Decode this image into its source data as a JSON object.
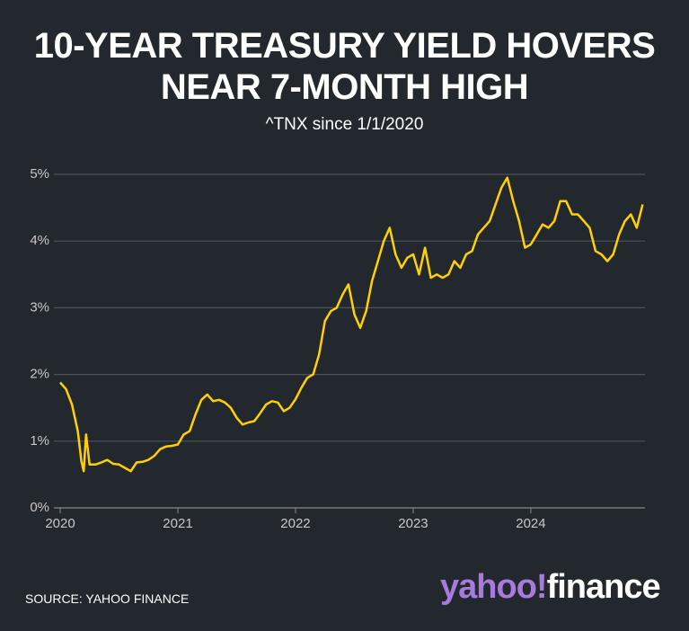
{
  "chart_data": {
    "type": "line",
    "title": "10-YEAR TREASURY YIELD HOVERS NEAR 7-MONTH HIGH",
    "subtitle": "^TNX since 1/1/2020",
    "source": "SOURCE: YAHOO FINANCE",
    "logo": {
      "brand": "yahoo!",
      "product": "finance"
    },
    "color": "#ffd100",
    "grid": true,
    "x": [
      2020.0,
      2020.05,
      2020.1,
      2020.15,
      2020.18,
      2020.2,
      2020.22,
      2020.25,
      2020.3,
      2020.35,
      2020.4,
      2020.45,
      2020.5,
      2020.55,
      2020.6,
      2020.65,
      2020.7,
      2020.75,
      2020.8,
      2020.85,
      2020.9,
      2020.95,
      2021.0,
      2021.05,
      2021.1,
      2021.15,
      2021.2,
      2021.25,
      2021.3,
      2021.35,
      2021.4,
      2021.45,
      2021.5,
      2021.55,
      2021.6,
      2021.65,
      2021.7,
      2021.75,
      2021.8,
      2021.85,
      2021.9,
      2021.95,
      2022.0,
      2022.05,
      2022.1,
      2022.15,
      2022.2,
      2022.25,
      2022.3,
      2022.35,
      2022.4,
      2022.45,
      2022.5,
      2022.55,
      2022.6,
      2022.65,
      2022.7,
      2022.75,
      2022.8,
      2022.85,
      2022.9,
      2022.95,
      2023.0,
      2023.05,
      2023.1,
      2023.15,
      2023.2,
      2023.25,
      2023.3,
      2023.35,
      2023.4,
      2023.45,
      2023.5,
      2023.55,
      2023.6,
      2023.65,
      2023.7,
      2023.75,
      2023.8,
      2023.85,
      2023.9,
      2023.95,
      2024.0,
      2024.05,
      2024.1,
      2024.15,
      2024.2,
      2024.25,
      2024.3,
      2024.35,
      2024.4,
      2024.45,
      2024.5,
      2024.55,
      2024.6,
      2024.65,
      2024.7,
      2024.75,
      2024.8,
      2024.85,
      2024.9,
      2024.95
    ],
    "values": [
      1.88,
      1.78,
      1.55,
      1.15,
      0.7,
      0.55,
      1.1,
      0.65,
      0.65,
      0.68,
      0.72,
      0.66,
      0.65,
      0.6,
      0.55,
      0.68,
      0.69,
      0.72,
      0.78,
      0.88,
      0.92,
      0.93,
      0.95,
      1.1,
      1.15,
      1.4,
      1.62,
      1.7,
      1.6,
      1.62,
      1.58,
      1.5,
      1.35,
      1.25,
      1.28,
      1.3,
      1.42,
      1.55,
      1.6,
      1.58,
      1.45,
      1.5,
      1.63,
      1.8,
      1.95,
      2.0,
      2.3,
      2.8,
      2.95,
      3.0,
      3.2,
      3.35,
      2.9,
      2.7,
      2.95,
      3.4,
      3.7,
      4.0,
      4.2,
      3.8,
      3.6,
      3.75,
      3.8,
      3.5,
      3.9,
      3.45,
      3.5,
      3.45,
      3.5,
      3.7,
      3.6,
      3.8,
      3.85,
      4.1,
      4.2,
      4.3,
      4.55,
      4.8,
      4.95,
      4.6,
      4.3,
      3.9,
      3.95,
      4.1,
      4.25,
      4.2,
      4.3,
      4.6,
      4.6,
      4.4,
      4.4,
      4.3,
      4.2,
      3.85,
      3.8,
      3.7,
      3.8,
      4.1,
      4.3,
      4.4,
      4.2,
      4.55
    ],
    "xlim": [
      2020,
      2024.97
    ],
    "xticks": [
      2020,
      2021,
      2022,
      2023,
      2024
    ],
    "ylim": [
      0,
      5
    ],
    "yticks": [
      {
        "value": 0,
        "label": "0%"
      },
      {
        "value": 1,
        "label": "1%"
      },
      {
        "value": 2,
        "label": "2%"
      },
      {
        "value": 3,
        "label": "3%"
      },
      {
        "value": 4,
        "label": "4%"
      },
      {
        "value": 5,
        "label": "5%"
      }
    ]
  }
}
